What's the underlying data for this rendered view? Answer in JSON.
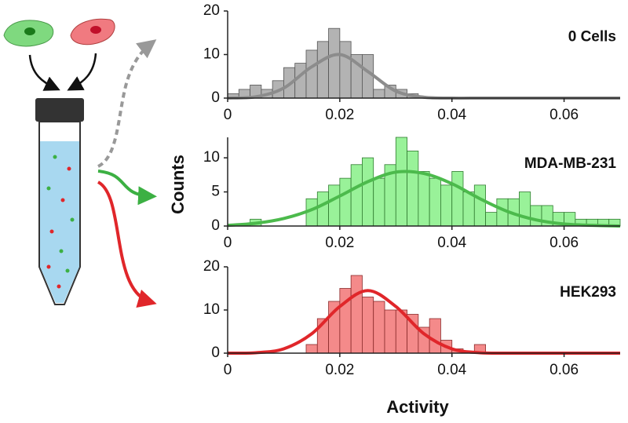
{
  "chart_data": [
    {
      "type": "histogram",
      "title": "0 Cells",
      "bins": [
        0,
        0.002,
        0.004,
        0.006,
        0.008,
        0.01,
        0.012,
        0.014,
        0.016,
        0.018,
        0.02,
        0.022,
        0.024,
        0.026,
        0.028,
        0.03,
        0.032,
        0.034,
        0.036,
        0.038,
        0.04,
        0.042,
        0.044,
        0.046,
        0.048,
        0.05,
        0.052,
        0.054,
        0.056,
        0.058,
        0.06,
        0.062,
        0.064,
        0.066,
        0.068,
        0.07
      ],
      "values": [
        1,
        2,
        3,
        2,
        4,
        7,
        8,
        11,
        13,
        16,
        13,
        10,
        10,
        2,
        3,
        2,
        1,
        0,
        0,
        0,
        0,
        0,
        0,
        0,
        0,
        0,
        0,
        0,
        0,
        0,
        0,
        0,
        0,
        0,
        0
      ],
      "color": "#b3b3b3",
      "edgecolor": "#555555",
      "fit_x": [
        0,
        0.005,
        0.01,
        0.015,
        0.02,
        0.025,
        0.03,
        0.035,
        0.04,
        0.045,
        0.05,
        0.055,
        0.06,
        0.065,
        0.07
      ],
      "fit_values": [
        0.0,
        0.3,
        2.3,
        7.2,
        10.0,
        6.1,
        1.6,
        0.2,
        0.0,
        0.0,
        0.0,
        0.0,
        0.0,
        0.0,
        0.0
      ],
      "fit_color": "#8c8c8c",
      "xlim": [
        0,
        0.07
      ],
      "xticks": [
        0,
        0.02,
        0.04,
        0.06
      ],
      "ylim": [
        0,
        20
      ],
      "yticks": [
        0,
        10,
        20
      ]
    },
    {
      "type": "histogram",
      "title": "MDA-MB-231",
      "ylabel": "Counts",
      "bins": [
        0,
        0.002,
        0.004,
        0.006,
        0.008,
        0.01,
        0.012,
        0.014,
        0.016,
        0.018,
        0.02,
        0.022,
        0.024,
        0.026,
        0.028,
        0.03,
        0.032,
        0.034,
        0.036,
        0.038,
        0.04,
        0.042,
        0.044,
        0.046,
        0.048,
        0.05,
        0.052,
        0.054,
        0.056,
        0.058,
        0.06,
        0.062,
        0.064,
        0.066,
        0.068,
        0.07
      ],
      "values": [
        0,
        0,
        1,
        0,
        0,
        0,
        0,
        4,
        5,
        6,
        7,
        9,
        10,
        7,
        9,
        13,
        11,
        8,
        7,
        6,
        8,
        5,
        6,
        2,
        4,
        4,
        5,
        3,
        3,
        2,
        2,
        1,
        1,
        1,
        1
      ],
      "color": "#99f299",
      "edgecolor": "#2f7a2f",
      "fit_x": [
        0,
        0.005,
        0.01,
        0.015,
        0.02,
        0.025,
        0.03,
        0.035,
        0.04,
        0.045,
        0.05,
        0.055,
        0.06,
        0.065,
        0.07
      ],
      "fit_values": [
        0.1,
        0.4,
        1.1,
        2.4,
        4.4,
        6.5,
        7.9,
        7.7,
        6.2,
        4.0,
        2.1,
        0.9,
        0.3,
        0.1,
        0.0
      ],
      "fit_color": "#4cba4c",
      "xlim": [
        0,
        0.07
      ],
      "xticks": [
        0,
        0.02,
        0.04,
        0.06
      ],
      "ylim": [
        0,
        13
      ],
      "yticks": [
        0,
        5,
        10
      ]
    },
    {
      "type": "histogram",
      "title": "HEK293",
      "xlabel": "Activity",
      "bins": [
        0,
        0.002,
        0.004,
        0.006,
        0.008,
        0.01,
        0.012,
        0.014,
        0.016,
        0.018,
        0.02,
        0.022,
        0.024,
        0.026,
        0.028,
        0.03,
        0.032,
        0.034,
        0.036,
        0.038,
        0.04,
        0.042,
        0.044,
        0.046,
        0.048,
        0.05,
        0.052,
        0.054,
        0.056,
        0.058,
        0.06,
        0.062,
        0.064,
        0.066,
        0.068,
        0.07
      ],
      "values": [
        0,
        0,
        0,
        0,
        0,
        0,
        0,
        2,
        8,
        12,
        15,
        18,
        13,
        12,
        10,
        10,
        9,
        6,
        8,
        3,
        1,
        0,
        2,
        0,
        0,
        0,
        0,
        0,
        0,
        0,
        0,
        0,
        0,
        0,
        0
      ],
      "color": "#f48a8a",
      "edgecolor": "#8a2a2a",
      "fit_x": [
        0,
        0.005,
        0.01,
        0.015,
        0.02,
        0.025,
        0.03,
        0.035,
        0.04,
        0.045,
        0.05,
        0.055,
        0.06,
        0.065,
        0.07
      ],
      "fit_values": [
        0.0,
        0.1,
        1.0,
        4.5,
        10.8,
        14.5,
        10.8,
        4.5,
        1.0,
        0.1,
        0.0,
        0.0,
        0.0,
        0.0,
        0.0
      ],
      "fit_color": "#e0262a",
      "xlim": [
        0,
        0.07
      ],
      "xticks": [
        0,
        0.02,
        0.04,
        0.06
      ],
      "ylim": [
        0,
        20
      ],
      "yticks": [
        0,
        10,
        20
      ]
    }
  ]
}
